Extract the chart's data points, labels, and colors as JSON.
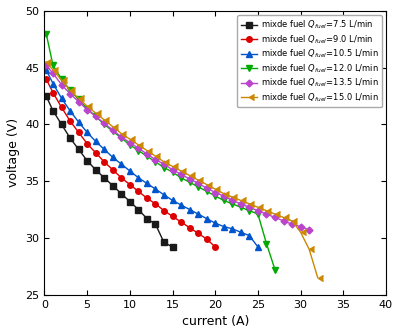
{
  "series": [
    {
      "label": "mixde fuel $Q_{fuel}$=7.5 L/min",
      "color": "#1a1a1a",
      "marker": "s",
      "markersize": 4,
      "current": [
        0.2,
        1,
        2,
        3,
        4,
        5,
        6,
        7,
        8,
        9,
        10,
        11,
        12,
        13,
        14,
        15
      ],
      "voltage": [
        42.5,
        41.2,
        40.0,
        38.8,
        37.8,
        36.8,
        36.0,
        35.3,
        34.6,
        33.9,
        33.2,
        32.5,
        31.7,
        31.2,
        29.6,
        29.2
      ]
    },
    {
      "label": "mixde fuel $Q_{fuel}$=9.0 L/min",
      "color": "#dd0000",
      "marker": "o",
      "markersize": 4,
      "current": [
        0.2,
        1,
        2,
        3,
        4,
        5,
        6,
        7,
        8,
        9,
        10,
        11,
        12,
        13,
        14,
        15,
        16,
        17,
        18,
        19,
        20
      ],
      "voltage": [
        44.0,
        42.8,
        41.5,
        40.3,
        39.3,
        38.3,
        37.5,
        36.7,
        36.0,
        35.3,
        34.7,
        34.1,
        33.5,
        33.0,
        32.4,
        31.9,
        31.4,
        30.9,
        30.4,
        29.9,
        29.2
      ]
    },
    {
      "label": "mixde fuel $Q_{fuel}$=10.5 L/min",
      "color": "#0055cc",
      "marker": "^",
      "markersize": 4,
      "current": [
        0.2,
        1,
        2,
        3,
        4,
        5,
        6,
        7,
        8,
        9,
        10,
        11,
        12,
        13,
        14,
        15,
        16,
        17,
        18,
        19,
        20,
        21,
        22,
        23,
        24,
        25
      ],
      "voltage": [
        44.8,
        43.6,
        42.3,
        41.2,
        40.2,
        39.3,
        38.5,
        37.8,
        37.1,
        36.5,
        35.9,
        35.3,
        34.8,
        34.3,
        33.8,
        33.3,
        32.9,
        32.5,
        32.1,
        31.7,
        31.3,
        31.0,
        30.8,
        30.5,
        30.2,
        29.2
      ]
    },
    {
      "label": "mixde fuel $Q_{fuel}$=12.0 L/min",
      "color": "#00aa00",
      "marker": "v",
      "markersize": 4,
      "current": [
        0.2,
        1,
        2,
        3,
        4,
        5,
        6,
        7,
        8,
        9,
        10,
        11,
        12,
        13,
        14,
        15,
        16,
        17,
        18,
        19,
        20,
        21,
        22,
        23,
        24,
        25,
        26,
        27
      ],
      "voltage": [
        48.0,
        45.2,
        44.0,
        43.0,
        42.2,
        41.4,
        40.7,
        40.0,
        39.4,
        38.8,
        38.2,
        37.7,
        37.2,
        36.7,
        36.2,
        35.8,
        35.3,
        34.9,
        34.5,
        34.1,
        33.7,
        33.3,
        33.0,
        32.7,
        32.4,
        32.1,
        29.5,
        27.2
      ]
    },
    {
      "label": "mixde fuel $Q_{fuel}$=13.5 L/min",
      "color": "#bb44cc",
      "marker": "D",
      "markersize": 3.5,
      "current": [
        0.2,
        1,
        2,
        3,
        4,
        5,
        6,
        7,
        8,
        9,
        10,
        11,
        12,
        13,
        14,
        15,
        16,
        17,
        18,
        19,
        20,
        21,
        22,
        23,
        24,
        25,
        26,
        27,
        28,
        29,
        30,
        31
      ],
      "voltage": [
        45.2,
        44.5,
        43.5,
        42.7,
        42.0,
        41.3,
        40.7,
        40.1,
        39.5,
        38.9,
        38.4,
        37.9,
        37.4,
        36.9,
        36.5,
        36.0,
        35.6,
        35.2,
        34.8,
        34.4,
        34.0,
        33.7,
        33.3,
        33.0,
        32.7,
        32.4,
        32.1,
        31.8,
        31.5,
        31.2,
        31.0,
        30.7
      ]
    },
    {
      "label": "mixde fuel $Q_{fuel}$=15.0 L/min",
      "color": "#cc8800",
      "marker": 4,
      "markersize": 5,
      "current": [
        0.2,
        1,
        2,
        3,
        4,
        5,
        6,
        7,
        8,
        9,
        10,
        11,
        12,
        13,
        14,
        15,
        16,
        17,
        18,
        19,
        20,
        21,
        22,
        23,
        24,
        25,
        26,
        27,
        28,
        29,
        30,
        31,
        32
      ],
      "voltage": [
        45.5,
        44.8,
        43.9,
        43.0,
        42.3,
        41.6,
        41.0,
        40.4,
        39.8,
        39.2,
        38.7,
        38.2,
        37.7,
        37.2,
        36.7,
        36.3,
        35.9,
        35.5,
        35.1,
        34.7,
        34.3,
        33.9,
        33.6,
        33.3,
        33.0,
        32.7,
        32.4,
        32.1,
        31.8,
        31.5,
        30.5,
        29.0,
        26.5
      ]
    }
  ],
  "xlim": [
    0,
    40
  ],
  "ylim": [
    25,
    50
  ],
  "xticks": [
    0,
    5,
    10,
    15,
    20,
    25,
    30,
    35,
    40
  ],
  "yticks": [
    25,
    30,
    35,
    40,
    45,
    50
  ],
  "xlabel": "current (A)",
  "ylabel": "voltage (V)",
  "legend_loc": "upper right",
  "figure_bg": "#ffffff"
}
